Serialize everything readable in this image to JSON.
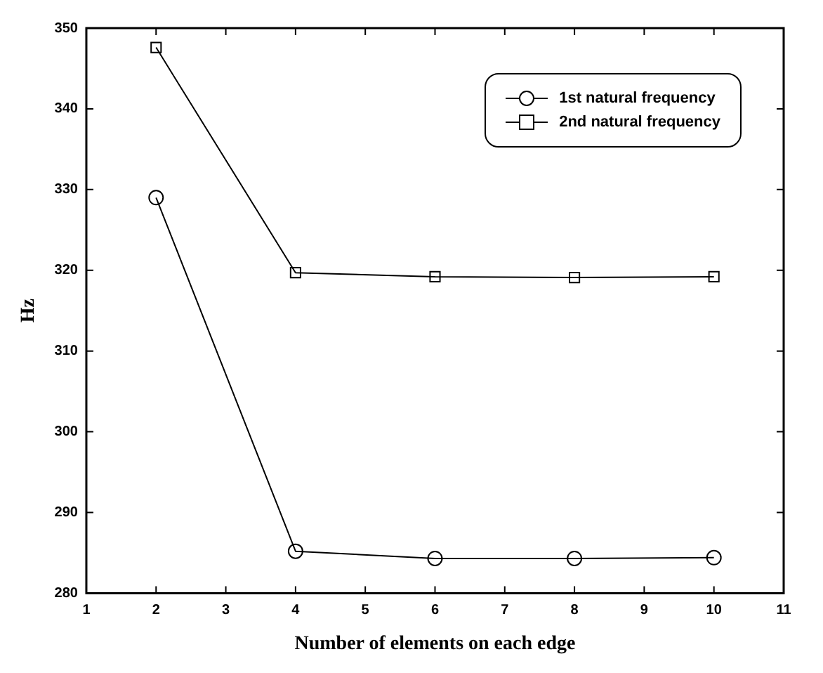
{
  "chart_data": {
    "type": "line",
    "xlabel": "Number of elements on each edge",
    "ylabel": "Hz",
    "x": [
      2,
      4,
      6,
      8,
      10
    ],
    "series": [
      {
        "name": "1st natural frequency",
        "color": "#000000",
        "marker": "circle",
        "values": [
          329,
          285.2,
          284.3,
          284.3,
          284.4
        ]
      },
      {
        "name": "2nd natural frequency",
        "color": "#000000",
        "marker": "square",
        "values": [
          347.6,
          319.7,
          319.2,
          319.1,
          319.2
        ]
      }
    ],
    "xlim": [
      1,
      11
    ],
    "xticks": [
      1,
      2,
      3,
      4,
      5,
      6,
      7,
      8,
      9,
      10,
      11
    ],
    "ylim": [
      280,
      350
    ],
    "yticks": [
      280,
      290,
      300,
      310,
      320,
      330,
      340,
      350
    ],
    "legend": "top right",
    "line_style": "solid"
  }
}
